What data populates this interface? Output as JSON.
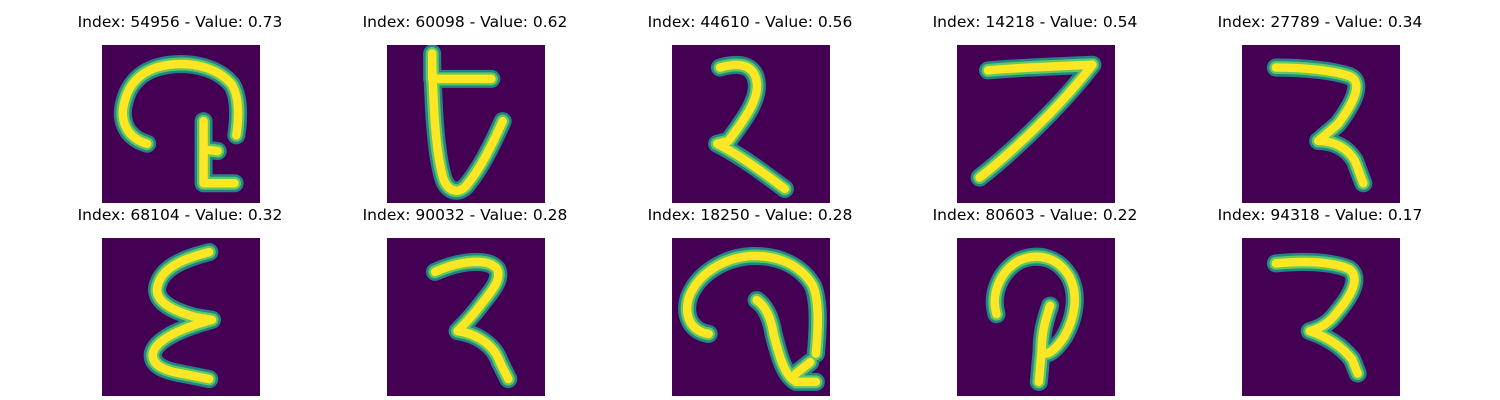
{
  "colors": {
    "background": "#440154",
    "stroke_edge": "#21918c",
    "stroke_mid": "#5ec962",
    "stroke_core": "#fde725"
  },
  "panels": [
    {
      "title": "Index: 54956 - Value: 0.73",
      "index": 54956,
      "value": 0.73
    },
    {
      "title": "Index: 60098 - Value: 0.62",
      "index": 60098,
      "value": 0.62
    },
    {
      "title": "Index: 44610 - Value: 0.56",
      "index": 44610,
      "value": 0.56
    },
    {
      "title": "Index: 14218 - Value: 0.54",
      "index": 14218,
      "value": 0.54
    },
    {
      "title": "Index: 27789 - Value: 0.34",
      "index": 27789,
      "value": 0.34
    },
    {
      "title": "Index: 68104 - Value: 0.32",
      "index": 68104,
      "value": 0.32
    },
    {
      "title": "Index: 90032 - Value: 0.28",
      "index": 90032,
      "value": 0.28
    },
    {
      "title": "Index: 18250 - Value: 0.28",
      "index": 18250,
      "value": 0.28
    },
    {
      "title": "Index: 80603 - Value: 0.22",
      "index": 80603,
      "value": 0.22
    },
    {
      "title": "Index: 94318 - Value: 0.17",
      "index": 94318,
      "value": 0.17
    }
  ]
}
